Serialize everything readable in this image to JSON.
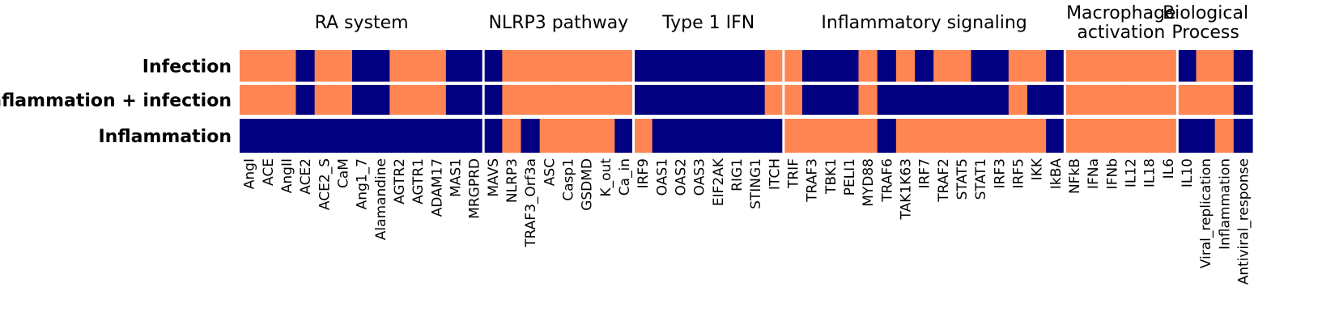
{
  "chart_data": {
    "type": "heatmap",
    "title": "",
    "colors": {
      "1": "#FF8552",
      "0": "#000080",
      "separator": "#ffffff"
    },
    "rows": [
      "Infection",
      "Inflammation + infection",
      "Inflammation"
    ],
    "groups": [
      {
        "label": [
          "RA system"
        ],
        "count": 13
      },
      {
        "label": [
          "NLRP3 pathway"
        ],
        "count": 8
      },
      {
        "label": [
          "Type 1 IFN"
        ],
        "count": 8
      },
      {
        "label": [
          "Inflammatory signaling"
        ],
        "count": 15
      },
      {
        "label": [
          "Macrophage",
          "activation"
        ],
        "count": 6
      },
      {
        "label": [
          "Biological",
          "Process"
        ],
        "count": 3
      }
    ],
    "columns": [
      "AngI",
      "ACE",
      "AngII",
      "ACE2",
      "ACE2_S",
      "CaM",
      "Ang1_7",
      "Alamandine",
      "AGTR2",
      "AGTR1",
      "ADAM17",
      "MAS1",
      "MRGPRD",
      "MAVS",
      "NLRP3",
      "TRAF3_Orf3a",
      "ASC",
      "Casp1",
      "GSDMD",
      "K_out",
      "Ca_in",
      "IRF9",
      "OAS1",
      "OAS2",
      "OAS3",
      "EIF2AK",
      "RIG1",
      "STING1",
      "ITCH",
      "TRIF",
      "TRAF3",
      "TBK1",
      "PELI1",
      "MYD88",
      "TRAF6",
      "TAK1K63",
      "IRF7",
      "TRAF2",
      "STAT5",
      "STAT1",
      "IRF3",
      "IRF5",
      "IKK",
      "IkBA",
      "NFkB",
      "IFNa",
      "IFNb",
      "IL12",
      "IL18",
      "IL6",
      "IL10",
      "Viral_replication",
      "Inflammation",
      "Antiviral_response"
    ],
    "values": [
      [
        1,
        1,
        1,
        0,
        1,
        1,
        0,
        0,
        1,
        1,
        1,
        0,
        0,
        0,
        1,
        1,
        1,
        1,
        1,
        1,
        1,
        0,
        0,
        0,
        0,
        0,
        0,
        0,
        1,
        1,
        0,
        0,
        0,
        1,
        0,
        1,
        0,
        1,
        1,
        0,
        0,
        1,
        1,
        0,
        1,
        1,
        1,
        1,
        1,
        1,
        0,
        1,
        1,
        0
      ],
      [
        1,
        1,
        1,
        0,
        1,
        1,
        0,
        0,
        1,
        1,
        1,
        0,
        0,
        0,
        1,
        1,
        1,
        1,
        1,
        1,
        1,
        0,
        0,
        0,
        0,
        0,
        0,
        0,
        1,
        1,
        0,
        0,
        0,
        1,
        0,
        0,
        0,
        0,
        0,
        0,
        0,
        1,
        0,
        0,
        1,
        1,
        1,
        1,
        1,
        1,
        1,
        1,
        1,
        0
      ],
      [
        0,
        0,
        0,
        0,
        0,
        0,
        0,
        0,
        0,
        0,
        0,
        0,
        0,
        0,
        1,
        0,
        1,
        1,
        1,
        1,
        0,
        1,
        0,
        0,
        0,
        0,
        0,
        0,
        0,
        1,
        1,
        1,
        1,
        1,
        0,
        1,
        1,
        1,
        1,
        1,
        1,
        1,
        1,
        0,
        1,
        1,
        1,
        1,
        1,
        1,
        0,
        0,
        1,
        0
      ]
    ]
  }
}
